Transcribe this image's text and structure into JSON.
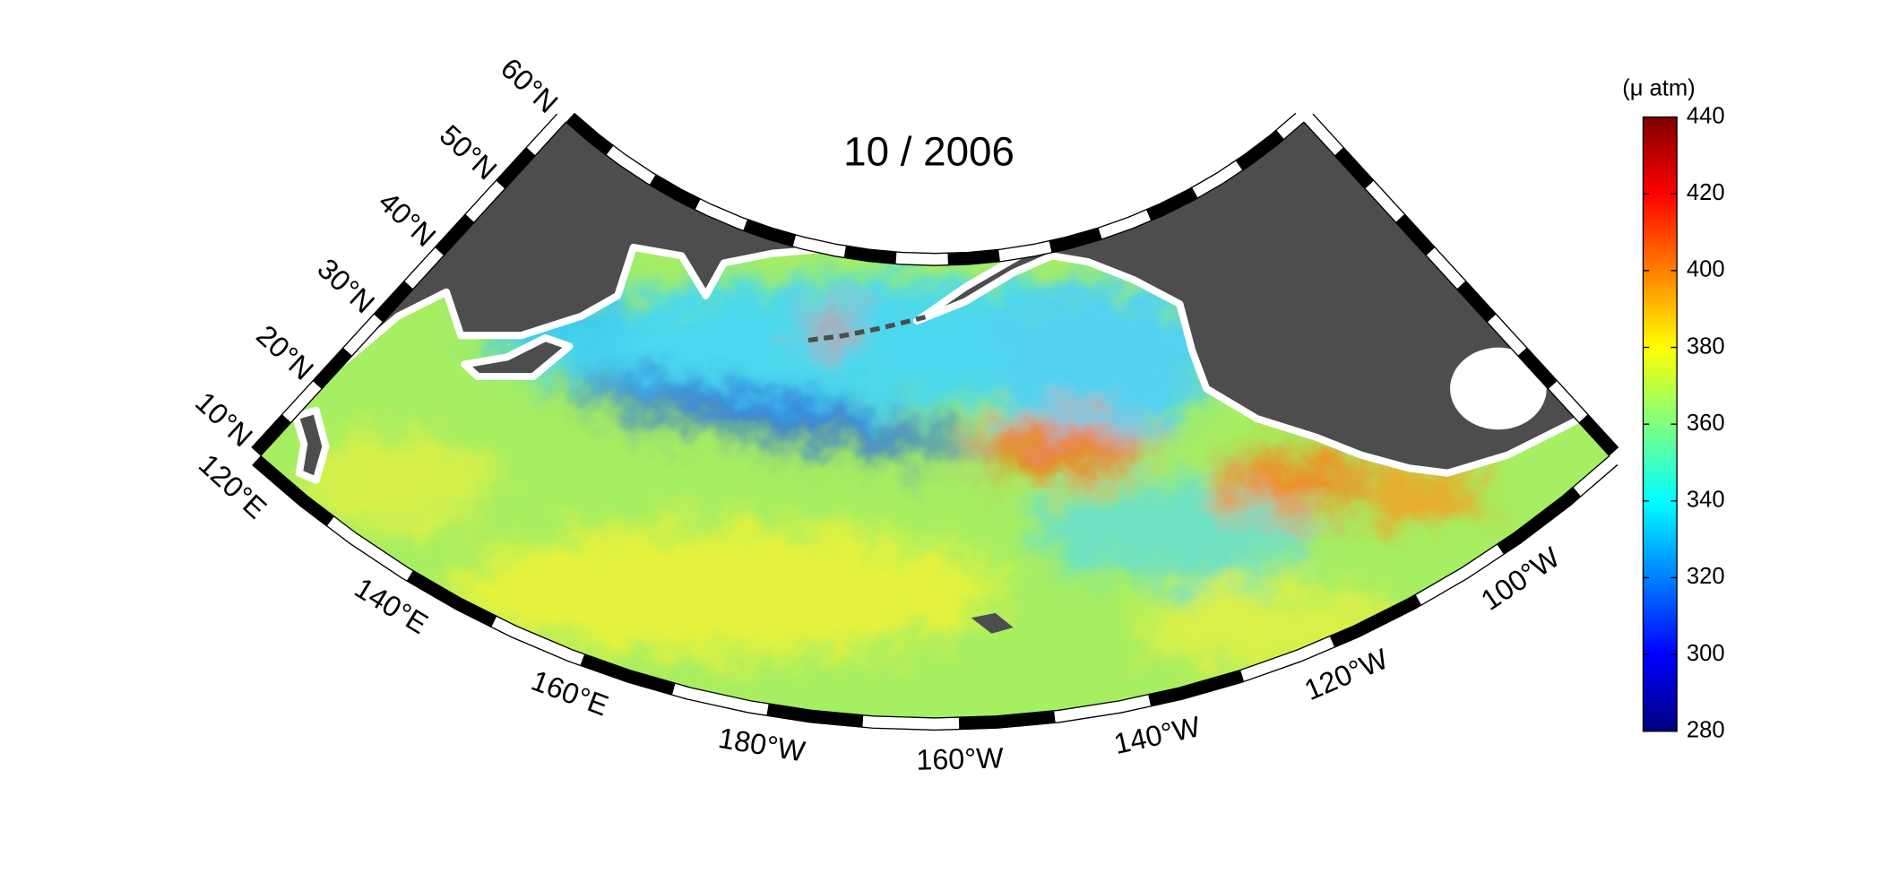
{
  "map": {
    "title": "10 / 2006",
    "lat_range": [
      10,
      60
    ],
    "lon_range": [
      120,
      -85
    ],
    "lat_ticks": [
      {
        "value": 10,
        "label": "10°N"
      },
      {
        "value": 20,
        "label": "20°N"
      },
      {
        "value": 30,
        "label": "30°N"
      },
      {
        "value": 40,
        "label": "40°N"
      },
      {
        "value": 50,
        "label": "50°N"
      },
      {
        "value": 60,
        "label": "60°N"
      }
    ],
    "lon_ticks": [
      {
        "value": 120,
        "label": "120°E"
      },
      {
        "value": 140,
        "label": "140°E"
      },
      {
        "value": 160,
        "label": "160°E"
      },
      {
        "value": 180,
        "label": "180°W"
      },
      {
        "value": -160,
        "label": "160°W"
      },
      {
        "value": -140,
        "label": "140°W"
      },
      {
        "value": -120,
        "label": "120°W"
      },
      {
        "value": -100,
        "label": "100°W"
      }
    ],
    "land_color": "#4d4d4d",
    "colorbar": {
      "label": "(μ atm)",
      "colormap": "jet",
      "clim": [
        280,
        440
      ],
      "ticks": [
        280,
        300,
        320,
        340,
        360,
        380,
        400,
        420,
        440
      ]
    }
  }
}
